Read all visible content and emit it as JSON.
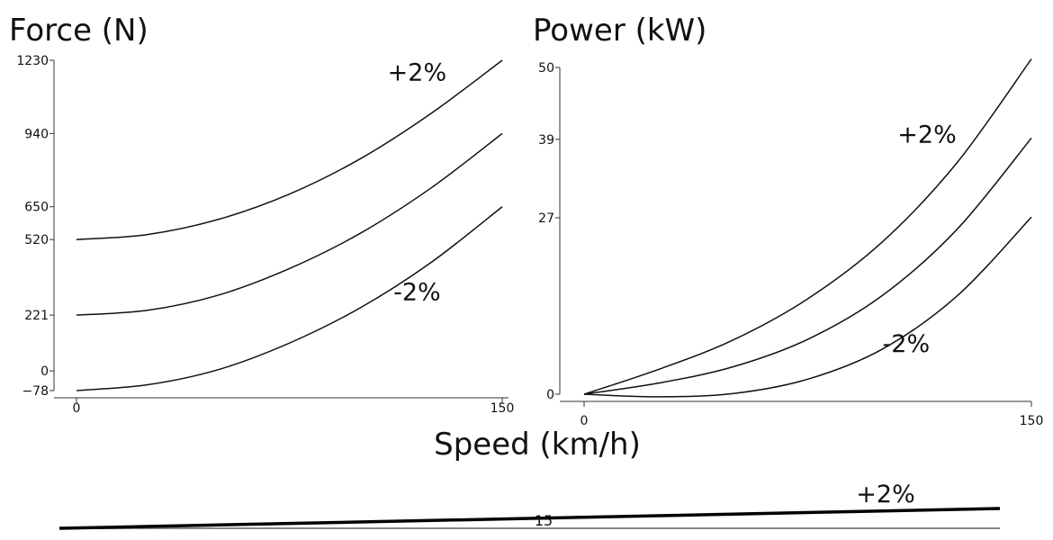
{
  "shared_xlabel": "Speed (km/h)",
  "chart_data": [
    {
      "type": "line",
      "title": "Force (N)",
      "xlabel": "Speed (km/h)",
      "ylabel": "Force (N)",
      "xlim": [
        0,
        150
      ],
      "ylim": [
        -78,
        1230
      ],
      "x_ticks": [
        0,
        150
      ],
      "y_ticks": [
        -78,
        0,
        221,
        520,
        650,
        940,
        1230
      ],
      "series": [
        {
          "x": [
            0,
            25,
            50,
            75,
            100,
            125,
            150
          ],
          "values": [
            520,
            540,
            600,
            700,
            840,
            1020,
            1230
          ]
        },
        {
          "x": [
            0,
            25,
            50,
            75,
            100,
            125,
            150
          ],
          "values": [
            221,
            240,
            300,
            405,
            545,
            725,
            940
          ]
        },
        {
          "x": [
            0,
            25,
            50,
            75,
            100,
            125,
            150
          ],
          "values": [
            -78,
            -55,
            5,
            110,
            250,
            430,
            650
          ]
        }
      ],
      "annotations": [
        {
          "text": "+2%",
          "x": 120,
          "y": 1150
        },
        {
          "text": "-2%",
          "x": 120,
          "y": 280
        }
      ]
    },
    {
      "type": "line",
      "title": "Power (kW)",
      "xlabel": "Speed (km/h)",
      "ylabel": "Power (kW)",
      "xlim": [
        0,
        150
      ],
      "ylim": [
        0,
        50
      ],
      "x_ticks": [
        0,
        150
      ],
      "y_ticks": [
        0,
        27,
        39,
        50
      ],
      "series": [
        {
          "x": [
            0,
            25,
            50,
            75,
            100,
            125,
            150
          ],
          "values": [
            0,
            3.8,
            8.3,
            14.6,
            23.3,
            35.4,
            51.3
          ]
        },
        {
          "x": [
            0,
            25,
            50,
            75,
            100,
            125,
            150
          ],
          "values": [
            0,
            1.7,
            4.2,
            8.4,
            15.1,
            25.2,
            39.2
          ]
        },
        {
          "x": [
            0,
            25,
            50,
            75,
            100,
            125,
            150
          ],
          "values": [
            0,
            -0.4,
            0.1,
            2.3,
            6.9,
            15.0,
            27.1
          ]
        }
      ],
      "annotations": [
        {
          "text": "+2%",
          "x": 115,
          "y": 38.5
        },
        {
          "text": "-2%",
          "x": 108,
          "y": 6.5
        }
      ]
    }
  ],
  "road": {
    "grade_label": "+2%",
    "center_label": "15"
  }
}
